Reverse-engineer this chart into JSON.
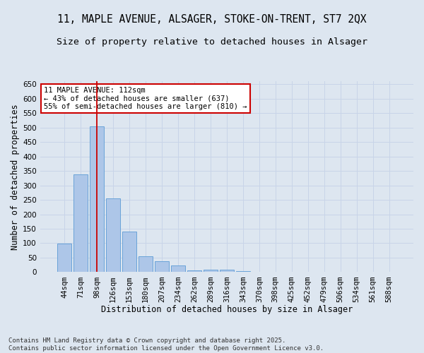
{
  "title_line1": "11, MAPLE AVENUE, ALSAGER, STOKE-ON-TRENT, ST7 2QX",
  "title_line2": "Size of property relative to detached houses in Alsager",
  "xlabel": "Distribution of detached houses by size in Alsager",
  "ylabel": "Number of detached properties",
  "categories": [
    "44sqm",
    "71sqm",
    "98sqm",
    "126sqm",
    "153sqm",
    "180sqm",
    "207sqm",
    "234sqm",
    "262sqm",
    "289sqm",
    "316sqm",
    "343sqm",
    "370sqm",
    "398sqm",
    "425sqm",
    "452sqm",
    "479sqm",
    "506sqm",
    "534sqm",
    "561sqm",
    "588sqm"
  ],
  "values": [
    99,
    338,
    505,
    254,
    140,
    55,
    38,
    22,
    7,
    8,
    8,
    3,
    0,
    0,
    0,
    0,
    0,
    0,
    0,
    0,
    0
  ],
  "bar_color": "#adc6e8",
  "bar_edge_color": "#5b9bd5",
  "grid_color": "#c8d4e8",
  "background_color": "#dde6f0",
  "plot_bg_color": "#dde6f0",
  "vline_color": "#cc0000",
  "annotation_text": "11 MAPLE AVENUE: 112sqm\n← 43% of detached houses are smaller (637)\n55% of semi-detached houses are larger (810) →",
  "annotation_box_color": "#ffffff",
  "annotation_box_edge": "#cc0000",
  "ylim_max": 660,
  "yticks": [
    0,
    50,
    100,
    150,
    200,
    250,
    300,
    350,
    400,
    450,
    500,
    550,
    600,
    650
  ],
  "footnote": "Contains HM Land Registry data © Crown copyright and database right 2025.\nContains public sector information licensed under the Open Government Licence v3.0.",
  "title_fontsize": 10.5,
  "subtitle_fontsize": 9.5,
  "axis_label_fontsize": 8.5,
  "tick_fontsize": 7.5,
  "annotation_fontsize": 7.5,
  "footnote_fontsize": 6.5
}
